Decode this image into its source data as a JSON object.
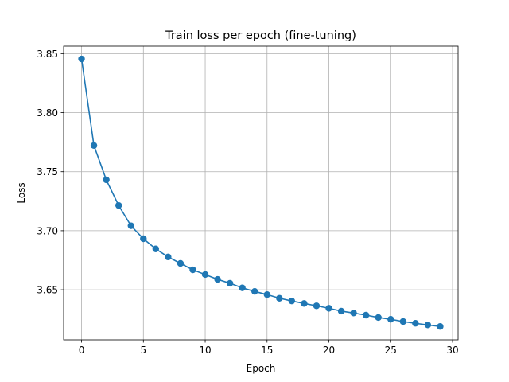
{
  "chart_data": {
    "type": "line",
    "title": "Train loss per epoch (fine-tuning)",
    "xlabel": "Epoch",
    "ylabel": "Loss",
    "xlim": [
      -1.45,
      30.45
    ],
    "ylim": [
      3.6076,
      3.8563
    ],
    "xticks": [
      0,
      5,
      10,
      15,
      20,
      25,
      30
    ],
    "yticks": [
      3.65,
      3.7,
      3.75,
      3.8,
      3.85
    ],
    "xtick_labels": [
      "0",
      "5",
      "10",
      "15",
      "20",
      "25",
      "30"
    ],
    "ytick_labels": [
      "3.65",
      "3.70",
      "3.75",
      "3.80",
      "3.85"
    ],
    "grid": true,
    "marker": "circle",
    "color": "#1f77b4",
    "series": [
      {
        "x": [
          0,
          1,
          2,
          3,
          4,
          5,
          6,
          7,
          8,
          9,
          10,
          11,
          12,
          13,
          14,
          15,
          16,
          17,
          18,
          19,
          20,
          21,
          22,
          23,
          24,
          25,
          26,
          27,
          28,
          29
        ],
        "values": [
          3.8455,
          3.7722,
          3.7431,
          3.7214,
          3.7042,
          3.6932,
          3.6846,
          3.6778,
          3.6723,
          3.6669,
          3.6629,
          3.6588,
          3.6555,
          3.6516,
          3.6486,
          3.6459,
          3.6428,
          3.6405,
          3.6384,
          3.6364,
          3.6343,
          3.6319,
          3.6303,
          3.6285,
          3.6265,
          3.625,
          3.6231,
          3.6216,
          3.6202,
          3.6189
        ]
      }
    ]
  }
}
